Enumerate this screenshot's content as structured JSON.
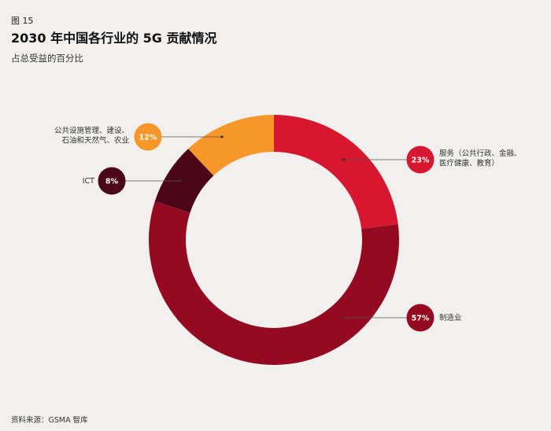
{
  "header": {
    "figure_label": "图 15",
    "title": "2030 年中国各行业的 5G 贡献情况",
    "subtitle": "占总受益的百分比"
  },
  "source": "资料来源：GSMA 智库",
  "colors": {
    "background": "#f1f0ef",
    "services": "#d7172f",
    "manufacturing": "#950a21",
    "ict": "#4b0717",
    "utilities": "#f7972a"
  },
  "chart_data": {
    "type": "pie",
    "style": "donut",
    "slices": [
      {
        "label_lines": [
          "服务（公共行政、金融、",
          "医疗健康、教育）"
        ],
        "value": 23,
        "display": "23%",
        "color": "#d7172f"
      },
      {
        "label_lines": [
          "制造业"
        ],
        "value": 57,
        "display": "57%",
        "color": "#950a21"
      },
      {
        "label_lines": [
          "ICT"
        ],
        "value": 8,
        "display": "8%",
        "color": "#4b0717"
      },
      {
        "label_lines": [
          "公共设施管理、建设、",
          "石油和天然气、农业"
        ],
        "value": 12,
        "display": "12%",
        "color": "#f7972a"
      }
    ]
  }
}
